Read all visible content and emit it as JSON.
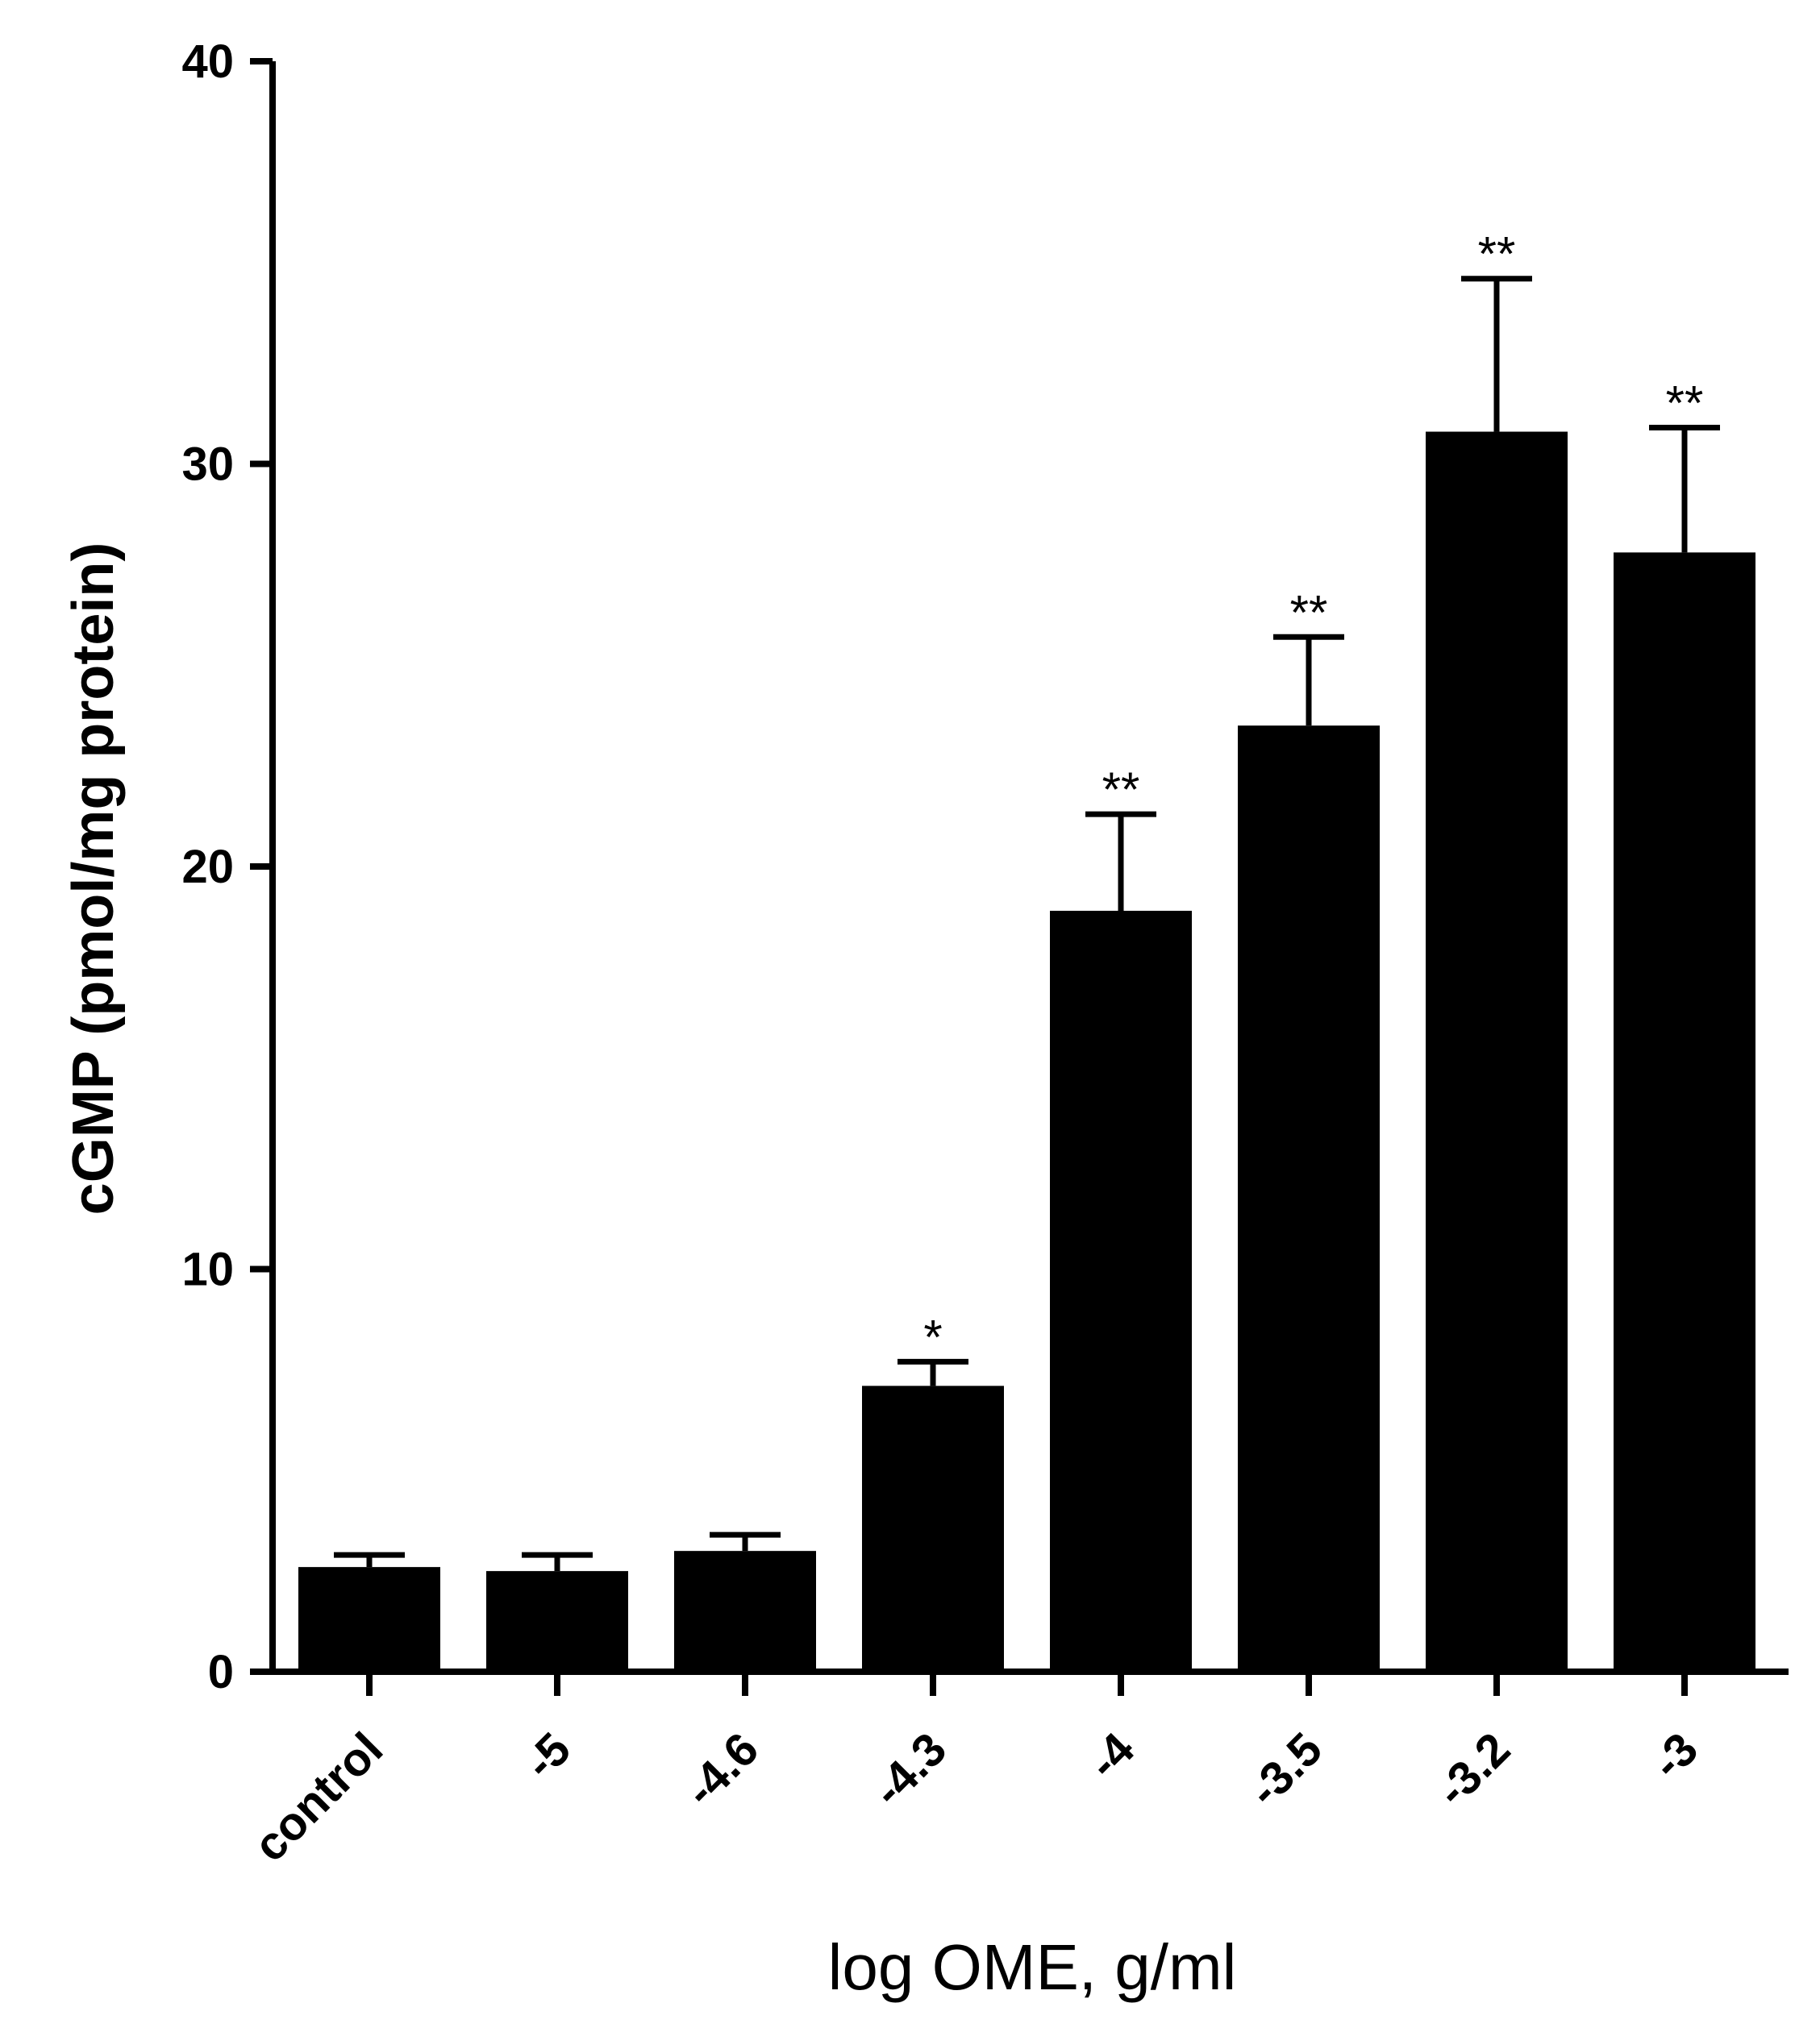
{
  "chart_data": {
    "type": "bar",
    "title": "",
    "xlabel": "log OME, g/ml",
    "ylabel": "cGMP (pmol/mg protein)",
    "ylim": [
      0,
      40
    ],
    "yticks": [
      0,
      10,
      20,
      30,
      40
    ],
    "categories": [
      "control",
      "-5",
      "-4.6",
      "-4.3",
      "-4",
      "-3.5",
      "-3.2",
      "-3"
    ],
    "series": [
      {
        "values": [
          2.6,
          2.5,
          3.0,
          7.1,
          18.9,
          23.5,
          30.8,
          27.8
        ],
        "errors": [
          0.3,
          0.4,
          0.4,
          0.6,
          2.4,
          2.2,
          3.8,
          3.1
        ],
        "significance": [
          "",
          "",
          "",
          "*",
          "**",
          "**",
          "**",
          "**"
        ]
      }
    ],
    "grid": false,
    "legend": "none",
    "colors": {
      "bar": "#000000",
      "axis": "#000000"
    }
  }
}
